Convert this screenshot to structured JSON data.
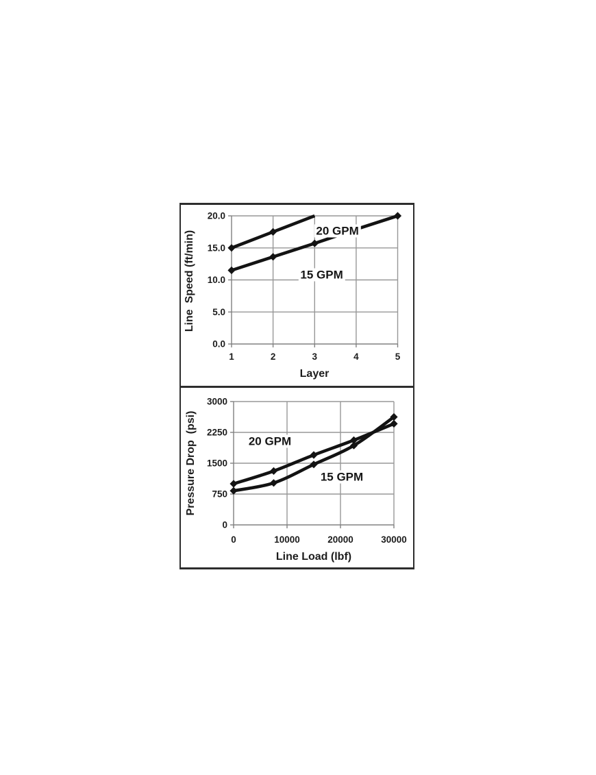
{
  "page": {
    "background": "#ffffff"
  },
  "figure": {
    "border_color": "#2d2d2d",
    "grid_color": "#979797",
    "axis_color": "#808080",
    "series_color": "#131313",
    "text_color": "#1c1c1c"
  },
  "chart_data": [
    {
      "type": "line",
      "title": "",
      "xlabel": "Layer",
      "ylabel": "Line  Speed (ft/min)",
      "xlim": [
        1,
        5
      ],
      "ylim": [
        0,
        20
      ],
      "grid": true,
      "legend_position": "inline-labels",
      "xticks": {
        "values": [
          1,
          2,
          3,
          4,
          5
        ],
        "labels": [
          "1",
          "2",
          "3",
          "4",
          "5"
        ]
      },
      "yticks": {
        "values": [
          0,
          5,
          10,
          15,
          20
        ],
        "labels": [
          "0.0",
          "5.0",
          "10.0",
          "15.0",
          "20.0"
        ]
      },
      "series": [
        {
          "name": "20 GPM",
          "x": [
            1,
            2,
            3
          ],
          "y": [
            15.0,
            17.5,
            20.0
          ],
          "smooth": false,
          "end_marker": false,
          "clipped_at_axis_top": true,
          "label_pos": {
            "x": 3.55,
            "y": 17.7
          }
        },
        {
          "name": "15 GPM",
          "x": [
            1,
            2,
            3,
            4,
            5
          ],
          "y": [
            11.5,
            13.6,
            15.7,
            17.9,
            20.0
          ],
          "smooth": false,
          "end_marker": true,
          "label_pos": {
            "x": 3.17,
            "y": 10.8
          }
        }
      ]
    },
    {
      "type": "line",
      "title": "",
      "xlabel": "Line Load (lbf)",
      "ylabel": "Pressure Drop  (psi)",
      "xlim": [
        0,
        30000
      ],
      "ylim": [
        0,
        3000
      ],
      "grid": true,
      "legend_position": "inline-labels",
      "xticks": {
        "values": [
          0,
          10000,
          20000,
          30000
        ],
        "labels": [
          "0",
          "10000",
          "20000",
          "30000"
        ]
      },
      "yticks": {
        "values": [
          0,
          750,
          1500,
          2250,
          3000
        ],
        "labels": [
          "0",
          "750",
          "1500",
          "2250",
          "3000"
        ]
      },
      "series": [
        {
          "name": "20 GPM",
          "x": [
            0,
            7500,
            15000,
            22500,
            30000
          ],
          "y": [
            1000,
            1310,
            1700,
            2060,
            2460
          ],
          "smooth": true,
          "end_marker": true,
          "label_pos": {
            "x": 6800,
            "y": 2030
          }
        },
        {
          "name": "15 GPM",
          "x": [
            0,
            7500,
            15000,
            22500,
            30000
          ],
          "y": [
            830,
            1020,
            1470,
            1930,
            2625
          ],
          "smooth": true,
          "end_marker": true,
          "label_pos": {
            "x": 20250,
            "y": 1170
          }
        }
      ]
    }
  ]
}
